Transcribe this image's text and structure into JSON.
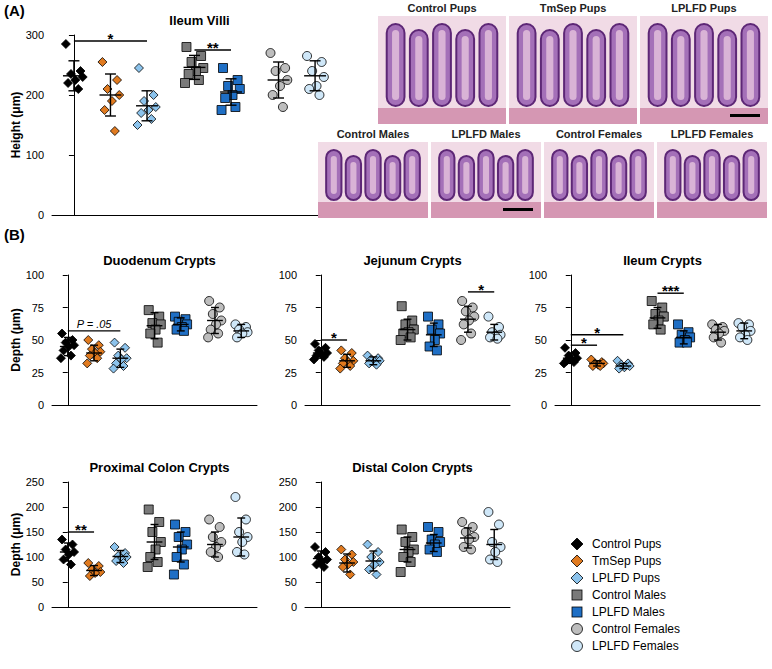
{
  "panel_labels": [
    "(A)",
    "(B)"
  ],
  "histology": {
    "top_row": [
      "Control Pups",
      "TmSep Pups",
      "LPLFD Pups"
    ],
    "bottom_row": [
      "Control Males",
      "LPLFD Males",
      "Control Females",
      "LPLFD Females"
    ]
  },
  "chart_data": [
    {
      "type": "scatter",
      "title": "Ileum Villi",
      "y_label": "Height (μm)",
      "ylim": [
        0,
        300
      ],
      "yticks": [
        0,
        100,
        200,
        300
      ],
      "tick_labels": "y",
      "series": [
        {
          "name": "Control Pups",
          "color": "#000000",
          "marker": "diamond",
          "values": [
            285,
            240,
            235,
            230,
            225,
            220,
            210
          ],
          "mean": 232,
          "sd": 25
        },
        {
          "name": "TmSep Pups",
          "color": "#e07a1f",
          "marker": "diamond",
          "values": [
            255,
            225,
            210,
            200,
            190,
            175,
            140
          ],
          "mean": 200,
          "sd": 35
        },
        {
          "name": "LPLFD Pups",
          "color": "#8cc3ec",
          "marker": "diamond",
          "values": [
            245,
            200,
            190,
            180,
            175,
            170,
            160,
            150
          ],
          "mean": 182,
          "sd": 25
        },
        {
          "name": "Control Males",
          "color": "#7a7a7a",
          "marker": "square",
          "values": [
            280,
            265,
            255,
            245,
            240,
            235,
            225,
            220
          ],
          "mean": 246,
          "sd": 20
        },
        {
          "name": "LPLFD Males",
          "color": "#1f6fc5",
          "marker": "square",
          "values": [
            245,
            225,
            215,
            210,
            200,
            195,
            180,
            175
          ],
          "mean": 205,
          "sd": 22
        },
        {
          "name": "Control Females",
          "color": "#bdbdbd",
          "marker": "circle",
          "values": [
            270,
            245,
            240,
            225,
            215,
            200,
            180
          ],
          "mean": 225,
          "sd": 30
        },
        {
          "name": "LPLFD Females",
          "color": "#cfe7f8",
          "marker": "circle",
          "values": [
            265,
            255,
            240,
            230,
            215,
            210,
            200
          ],
          "mean": 232,
          "sd": 25
        }
      ],
      "significance": [
        {
          "groups": [
            "Control Pups",
            "LPLFD Pups"
          ],
          "y": 290,
          "label": "*"
        },
        {
          "groups": [
            "Control Males",
            "LPLFD Males"
          ],
          "y": 275,
          "label": "**"
        }
      ]
    },
    {
      "type": "scatter",
      "title": "Duodenum Crypts",
      "y_label": "Depth (μm)",
      "ylim": [
        0,
        100
      ],
      "yticks": [
        0,
        25,
        50,
        75,
        100
      ],
      "tick_labels": "y",
      "series": [
        {
          "name": "Control Pups",
          "color": "#000000",
          "marker": "diamond",
          "values": [
            55,
            50,
            48,
            46,
            45,
            42,
            38,
            36
          ],
          "mean": 45,
          "sd": 7
        },
        {
          "name": "TmSep Pups",
          "color": "#e07a1f",
          "marker": "diamond",
          "values": [
            50,
            46,
            43,
            41,
            40,
            38,
            36,
            32
          ],
          "mean": 40,
          "sd": 6
        },
        {
          "name": "LPLFD Pups",
          "color": "#8cc3ec",
          "marker": "diamond",
          "values": [
            48,
            44,
            38,
            36,
            35,
            32,
            30,
            28
          ],
          "mean": 36,
          "sd": 7
        },
        {
          "name": "Control Males",
          "color": "#7a7a7a",
          "marker": "square",
          "values": [
            73,
            68,
            63,
            62,
            58,
            55,
            48
          ],
          "mean": 61,
          "sd": 10
        },
        {
          "name": "LPLFD Males",
          "color": "#1f6fc5",
          "marker": "square",
          "values": [
            68,
            66,
            64,
            62,
            60,
            58,
            57
          ],
          "mean": 62,
          "sd": 5
        },
        {
          "name": "Control Females",
          "color": "#bdbdbd",
          "marker": "circle",
          "values": [
            80,
            75,
            70,
            65,
            62,
            58,
            55,
            52
          ],
          "mean": 65,
          "sd": 10
        },
        {
          "name": "LPLFD Females",
          "color": "#cfe7f8",
          "marker": "circle",
          "values": [
            62,
            60,
            58,
            56,
            55,
            52
          ],
          "mean": 57,
          "sd": 5
        }
      ],
      "significance": [
        {
          "groups": [
            "Control Pups",
            "LPLFD Pups"
          ],
          "y": 57,
          "label": "P = .05"
        }
      ]
    },
    {
      "type": "scatter",
      "title": "Jejunum Crypts",
      "ylim": [
        0,
        100
      ],
      "yticks": [
        0,
        25,
        50,
        75,
        100
      ],
      "tick_labels": "y",
      "series": [
        {
          "name": "Control Pups",
          "color": "#000000",
          "marker": "diamond",
          "values": [
            47,
            44,
            42,
            40,
            39,
            38,
            37,
            35
          ],
          "mean": 40,
          "sd": 4
        },
        {
          "name": "TmSep Pups",
          "color": "#e07a1f",
          "marker": "diamond",
          "values": [
            42,
            40,
            36,
            34,
            33,
            32,
            30,
            28
          ],
          "mean": 34,
          "sd": 5
        },
        {
          "name": "LPLFD Pups",
          "color": "#8cc3ec",
          "marker": "diamond",
          "values": [
            38,
            36,
            35,
            34,
            33,
            32,
            31
          ],
          "mean": 34,
          "sd": 3
        },
        {
          "name": "Control Males",
          "color": "#7a7a7a",
          "marker": "square",
          "values": [
            76,
            65,
            62,
            58,
            56,
            55,
            52,
            50
          ],
          "mean": 58,
          "sd": 8
        },
        {
          "name": "LPLFD Males",
          "color": "#1f6fc5",
          "marker": "square",
          "values": [
            68,
            62,
            58,
            55,
            50,
            45,
            42
          ],
          "mean": 54,
          "sd": 9
        },
        {
          "name": "Control Females",
          "color": "#bdbdbd",
          "marker": "circle",
          "values": [
            80,
            75,
            72,
            68,
            65,
            62,
            55,
            50
          ],
          "mean": 66,
          "sd": 10
        },
        {
          "name": "LPLFD Females",
          "color": "#cfe7f8",
          "marker": "circle",
          "values": [
            68,
            60,
            56,
            54,
            53,
            52,
            51
          ],
          "mean": 56,
          "sd": 6
        }
      ],
      "significance": [
        {
          "groups": [
            "Control Pups",
            "TmSep Pups"
          ],
          "y": 50,
          "label": "*"
        },
        {
          "groups": [
            "Control Females",
            "LPLFD Females"
          ],
          "y": 87,
          "label": "*"
        }
      ]
    },
    {
      "type": "scatter",
      "title": "Ileum Crypts",
      "ylim": [
        0,
        100
      ],
      "yticks": [
        0,
        25,
        50,
        75,
        100
      ],
      "tick_labels": "y",
      "series": [
        {
          "name": "Control Pups",
          "color": "#000000",
          "marker": "diamond",
          "values": [
            44,
            40,
            38,
            36,
            35,
            34,
            33,
            32
          ],
          "mean": 36,
          "sd": 4
        },
        {
          "name": "TmSep Pups",
          "color": "#e07a1f",
          "marker": "diamond",
          "values": [
            35,
            33,
            32,
            32,
            31,
            30,
            30
          ],
          "mean": 32,
          "sd": 2
        },
        {
          "name": "LPLFD Pups",
          "color": "#8cc3ec",
          "marker": "diamond",
          "values": [
            34,
            32,
            31,
            30,
            29,
            28
          ],
          "mean": 30,
          "sd": 2
        },
        {
          "name": "Control Males",
          "color": "#7a7a7a",
          "marker": "square",
          "values": [
            80,
            75,
            70,
            68,
            65,
            62,
            58
          ],
          "mean": 67,
          "sd": 8
        },
        {
          "name": "LPLFD Males",
          "color": "#1f6fc5",
          "marker": "square",
          "values": [
            62,
            56,
            54,
            52,
            50,
            48,
            48
          ],
          "mean": 52,
          "sd": 5
        },
        {
          "name": "Control Females",
          "color": "#bdbdbd",
          "marker": "circle",
          "values": [
            62,
            60,
            58,
            57,
            55,
            52,
            48
          ],
          "mean": 56,
          "sd": 6
        },
        {
          "name": "LPLFD Females",
          "color": "#cfe7f8",
          "marker": "circle",
          "values": [
            63,
            62,
            60,
            57,
            54,
            52,
            50
          ],
          "mean": 57,
          "sd": 6
        }
      ],
      "significance": [
        {
          "groups": [
            "Control Pups",
            "TmSep Pups"
          ],
          "y": 46,
          "label": "*"
        },
        {
          "groups": [
            "Control Pups",
            "LPLFD Pups"
          ],
          "y": 54,
          "label": "*"
        },
        {
          "groups": [
            "Control Males",
            "LPLFD Males"
          ],
          "y": 86,
          "label": "***"
        }
      ]
    },
    {
      "type": "scatter",
      "title": "Proximal Colon Crypts",
      "y_label": "Depth (μm)",
      "ylim": [
        0,
        250
      ],
      "yticks": [
        0,
        50,
        100,
        150,
        200,
        250
      ],
      "tick_labels": "y",
      "series": [
        {
          "name": "Control Pups",
          "color": "#000000",
          "marker": "diamond",
          "values": [
            135,
            125,
            115,
            110,
            105,
            95,
            85
          ],
          "mean": 110,
          "sd": 18
        },
        {
          "name": "TmSep Pups",
          "color": "#e07a1f",
          "marker": "diamond",
          "values": [
            88,
            82,
            75,
            70,
            68,
            62
          ],
          "mean": 73,
          "sd": 10
        },
        {
          "name": "LPLFD Pups",
          "color": "#8cc3ec",
          "marker": "diamond",
          "values": [
            120,
            108,
            102,
            100,
            96,
            92,
            88
          ],
          "mean": 101,
          "sd": 12
        },
        {
          "name": "Control Males",
          "color": "#7a7a7a",
          "marker": "square",
          "values": [
            195,
            170,
            150,
            130,
            115,
            100,
            90,
            80
          ],
          "mean": 130,
          "sd": 35
        },
        {
          "name": "LPLFD Males",
          "color": "#1f6fc5",
          "marker": "square",
          "values": [
            165,
            150,
            140,
            125,
            115,
            100,
            85,
            65
          ],
          "mean": 120,
          "sd": 30
        },
        {
          "name": "Control Females",
          "color": "#bdbdbd",
          "marker": "circle",
          "values": [
            175,
            160,
            140,
            130,
            120,
            110,
            100
          ],
          "mean": 125,
          "sd": 25
        },
        {
          "name": "LPLFD Females",
          "color": "#cfe7f8",
          "marker": "circle",
          "values": [
            220,
            175,
            150,
            140,
            130,
            110,
            105
          ],
          "mean": 140,
          "sd": 38
        }
      ],
      "significance": [
        {
          "groups": [
            "Control Pups",
            "TmSep Pups"
          ],
          "y": 150,
          "label": "**"
        }
      ]
    },
    {
      "type": "scatter",
      "title": "Distal Colon Crypts",
      "ylim": [
        0,
        250
      ],
      "yticks": [
        0,
        50,
        100,
        150,
        200,
        250
      ],
      "tick_labels": "y",
      "series": [
        {
          "name": "Control Pups",
          "color": "#000000",
          "marker": "diamond",
          "values": [
            120,
            110,
            100,
            95,
            90,
            85,
            80
          ],
          "mean": 97,
          "sd": 15
        },
        {
          "name": "TmSep Pups",
          "color": "#e07a1f",
          "marker": "diamond",
          "values": [
            115,
            105,
            95,
            90,
            85,
            80,
            65
          ],
          "mean": 88,
          "sd": 18
        },
        {
          "name": "LPLFD Pups",
          "color": "#8cc3ec",
          "marker": "diamond",
          "values": [
            125,
            110,
            100,
            90,
            85,
            75,
            65
          ],
          "mean": 92,
          "sd": 20
        },
        {
          "name": "Control Males",
          "color": "#7a7a7a",
          "marker": "square",
          "values": [
            155,
            140,
            130,
            115,
            110,
            100,
            90,
            70
          ],
          "mean": 115,
          "sd": 25
        },
        {
          "name": "LPLFD Males",
          "color": "#1f6fc5",
          "marker": "square",
          "values": [
            160,
            150,
            135,
            130,
            125,
            115,
            110
          ],
          "mean": 128,
          "sd": 17
        },
        {
          "name": "Control Females",
          "color": "#bdbdbd",
          "marker": "circle",
          "values": [
            170,
            160,
            150,
            140,
            135,
            120,
            115
          ],
          "mean": 138,
          "sd": 20
        },
        {
          "name": "LPLFD Females",
          "color": "#cfe7f8",
          "marker": "circle",
          "values": [
            190,
            165,
            130,
            120,
            110,
            95,
            90
          ],
          "mean": 125,
          "sd": 30
        }
      ],
      "significance": []
    }
  ]
}
